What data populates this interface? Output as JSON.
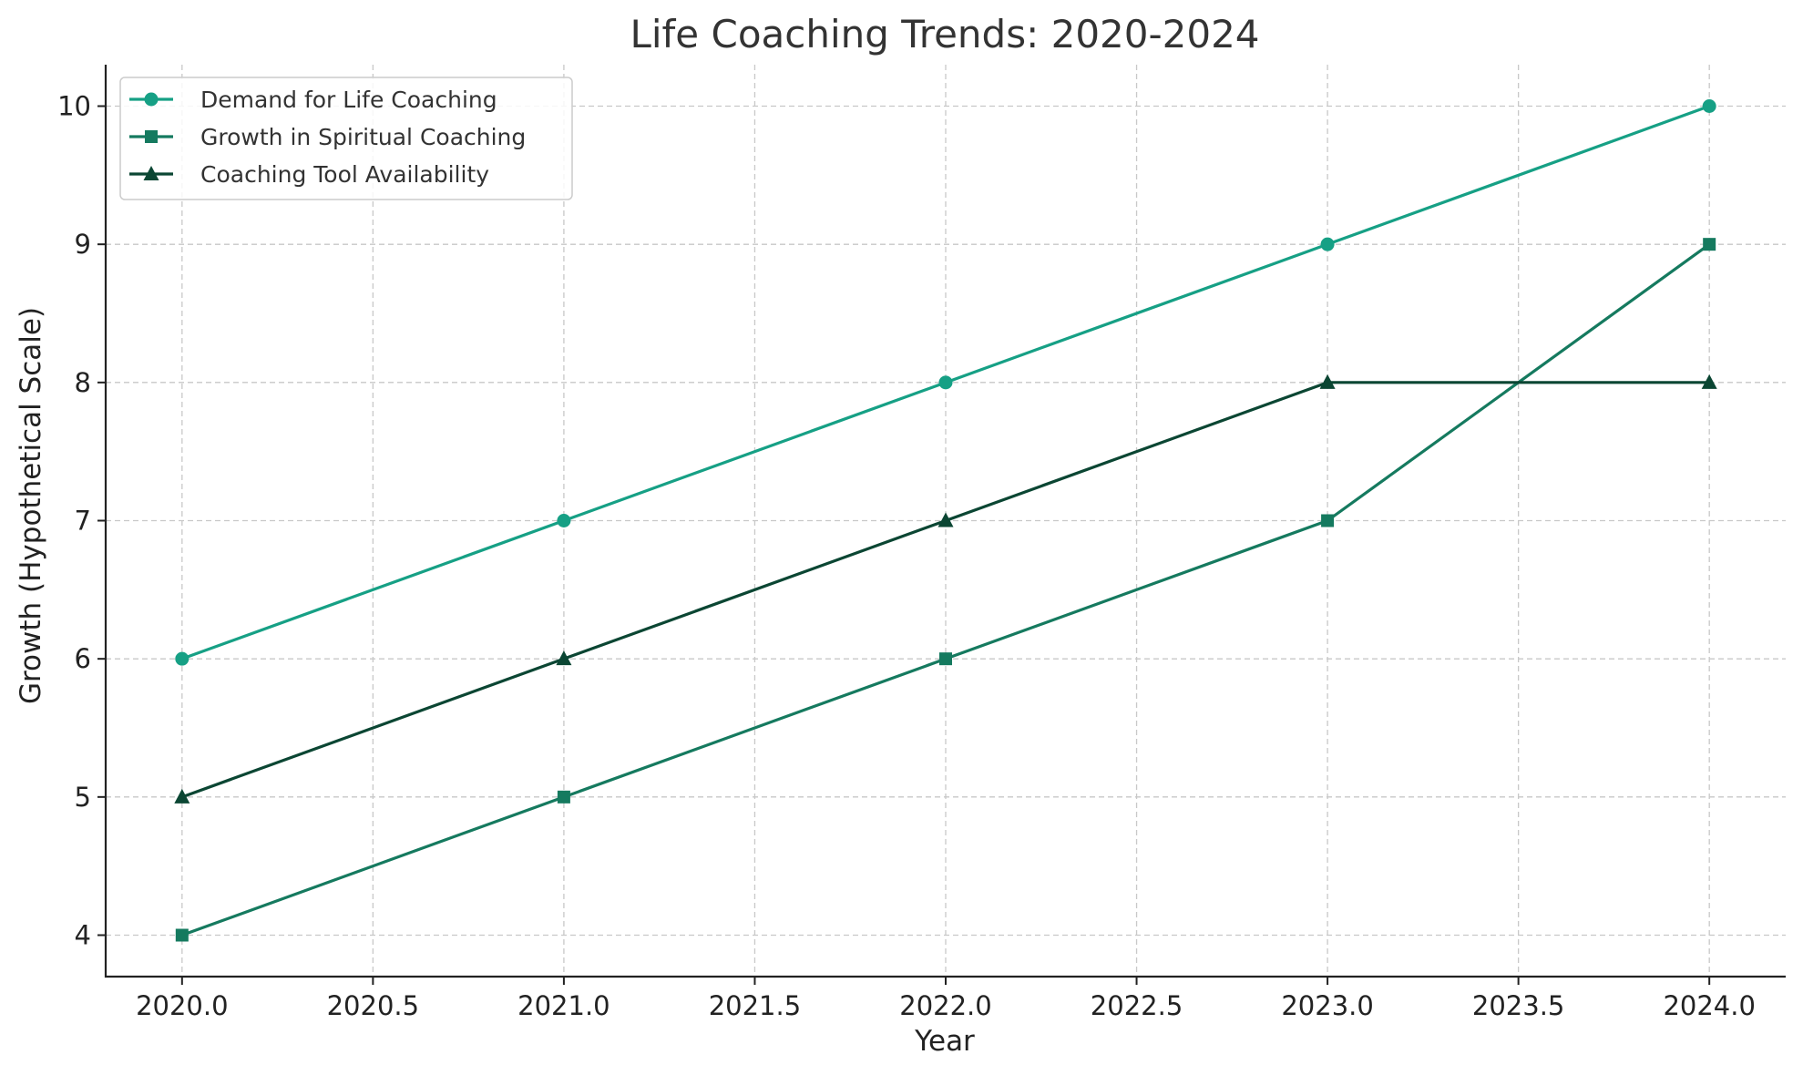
{
  "chart_data": {
    "type": "line",
    "title": "Life Coaching Trends: 2020-2024",
    "xlabel": "Year",
    "ylabel": "Growth (Hypothetical Scale)",
    "x": [
      2020,
      2021,
      2022,
      2023,
      2024
    ],
    "xlim": [
      2019.8,
      2024.2
    ],
    "ylim": [
      3.7,
      10.3
    ],
    "xticks": [
      "2020.0",
      "2020.5",
      "2021.0",
      "2021.5",
      "2022.0",
      "2022.5",
      "2023.0",
      "2023.5",
      "2024.0"
    ],
    "yticks": [
      "4",
      "5",
      "6",
      "7",
      "8",
      "9",
      "10"
    ],
    "grid": true,
    "legend_position": "top-left",
    "series": [
      {
        "name": "Demand for Life Coaching",
        "values": [
          6,
          7,
          8,
          9,
          10
        ],
        "marker": "circle",
        "color": "#16a085"
      },
      {
        "name": "Growth in Spiritual Coaching",
        "values": [
          4,
          5,
          6,
          7,
          9
        ],
        "marker": "square",
        "color": "#157a5f"
      },
      {
        "name": "Coaching Tool Availability",
        "values": [
          5,
          6,
          7,
          8,
          8
        ],
        "marker": "triangle",
        "color": "#0b4633"
      }
    ]
  }
}
